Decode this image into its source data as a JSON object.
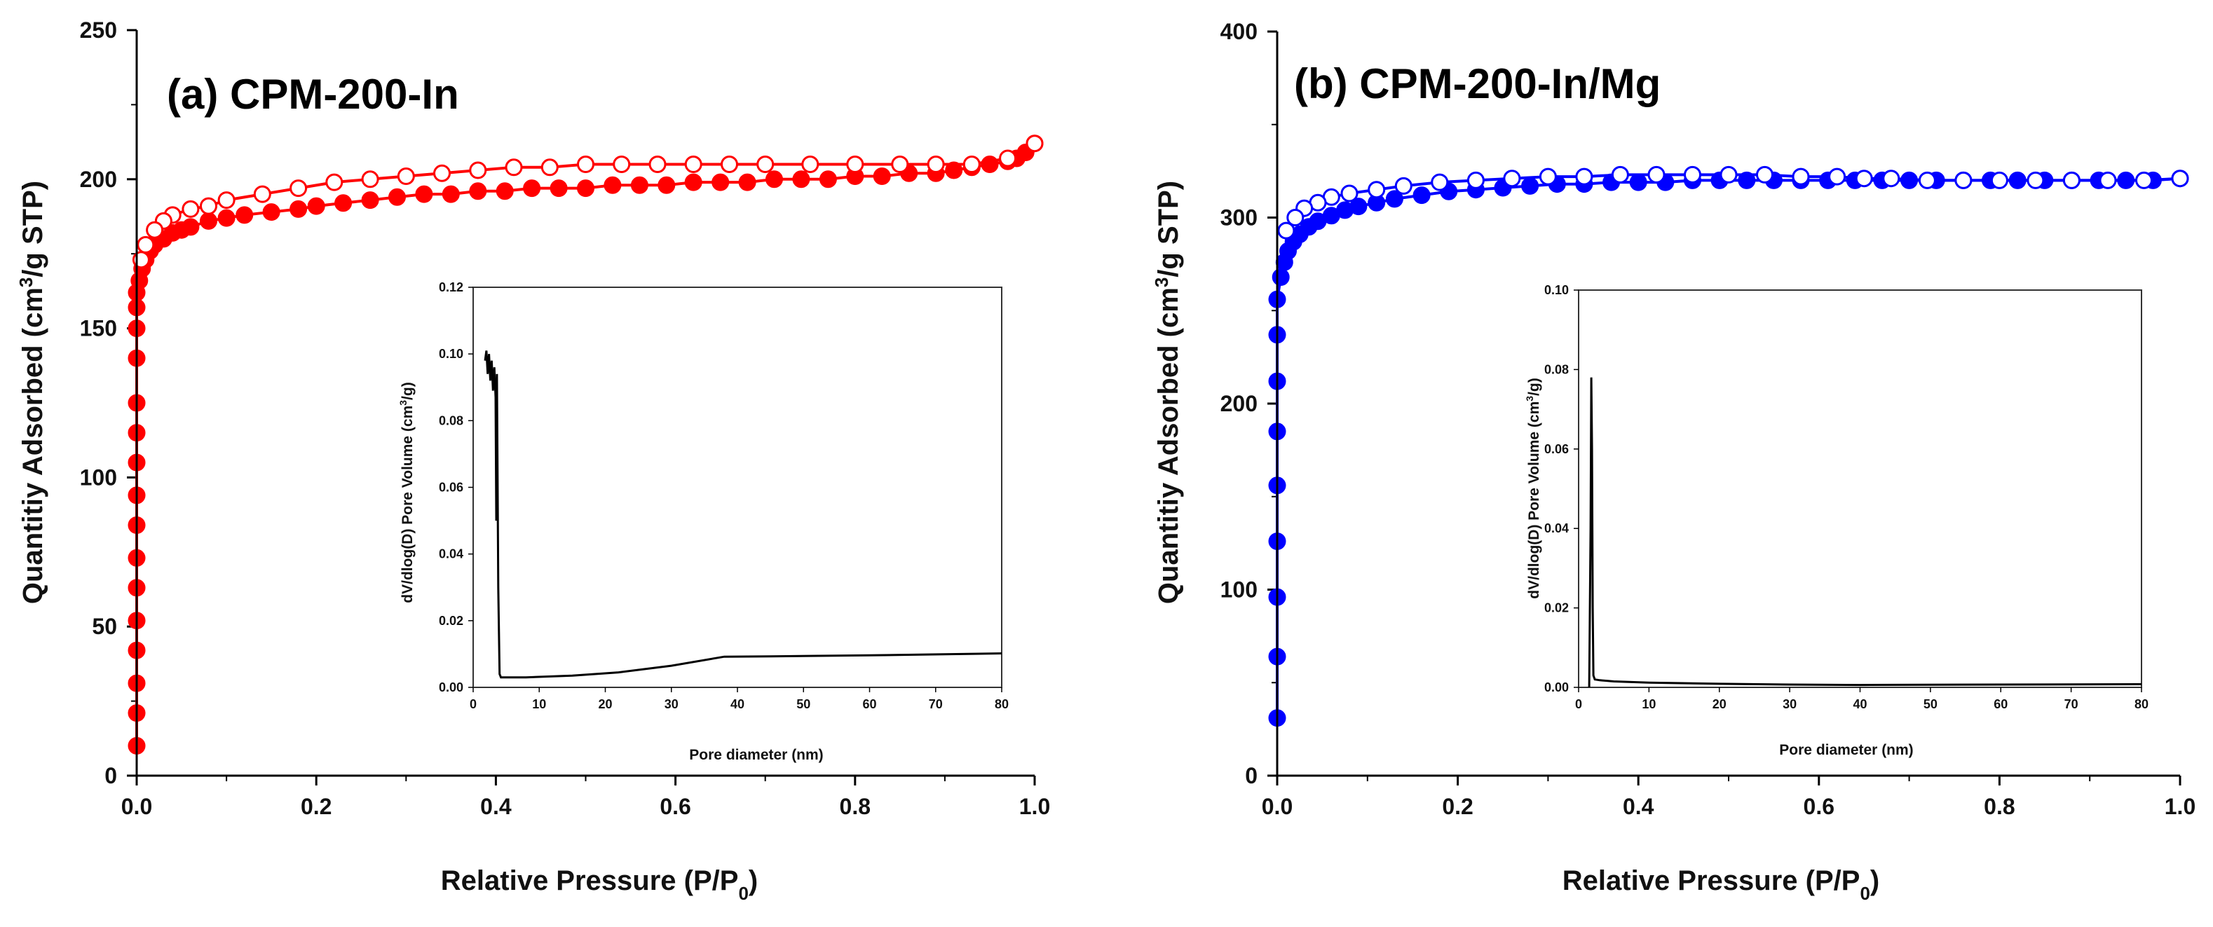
{
  "figure": {
    "background": "#ffffff",
    "axis_color": "#000000"
  },
  "chart_data": [
    {
      "type": "scatter",
      "title": "(a) CPM-200-In",
      "xlabel": "Relative Pressure (P/P0)",
      "xlabel_main": "Relative Pressure (P/P",
      "xlabel_sub": "0",
      "xlabel_tail": ")",
      "ylabel": "Quantitiy Adsorbed (cm3/g STP)",
      "ylabel_main": "Quantitiy Adsorbed (cm",
      "ylabel_sup": "3",
      "ylabel_tail": "/g STP)",
      "xlim": [
        0,
        1.0
      ],
      "ylim": [
        0,
        250
      ],
      "xticks": [
        0.0,
        0.2,
        0.4,
        0.6,
        0.8,
        1.0
      ],
      "xtick_labels": [
        "0.0",
        "0.2",
        "0.4",
        "0.6",
        "0.8",
        "1.0"
      ],
      "yticks": [
        0,
        50,
        100,
        150,
        200,
        250
      ],
      "ytick_labels": [
        "0",
        "50",
        "100",
        "150",
        "200",
        "250"
      ],
      "color": "#ff0000",
      "series": [
        {
          "name": "adsorption",
          "marker": "filled-circle",
          "x": [
            0.0,
            0.0,
            0.0,
            0.0,
            0.0,
            0.0,
            0.0,
            0.0,
            0.0,
            0.0,
            0.0,
            0.0,
            0.0,
            0.0,
            0.0,
            0.0,
            0.003,
            0.006,
            0.01,
            0.015,
            0.02,
            0.03,
            0.04,
            0.05,
            0.06,
            0.08,
            0.1,
            0.12,
            0.15,
            0.18,
            0.2,
            0.23,
            0.26,
            0.29,
            0.32,
            0.35,
            0.38,
            0.41,
            0.44,
            0.47,
            0.5,
            0.53,
            0.56,
            0.59,
            0.62,
            0.65,
            0.68,
            0.71,
            0.74,
            0.77,
            0.8,
            0.83,
            0.86,
            0.89,
            0.91,
            0.93,
            0.95,
            0.97,
            0.98,
            0.99,
            1.0
          ],
          "y": [
            10,
            21,
            31,
            42,
            52,
            63,
            73,
            84,
            94,
            105,
            115,
            125,
            140,
            150,
            157,
            162,
            166,
            170,
            173,
            176,
            178,
            180,
            182,
            183,
            184,
            186,
            187,
            188,
            189,
            190,
            191,
            192,
            193,
            194,
            195,
            195,
            196,
            196,
            197,
            197,
            197,
            198,
            198,
            198,
            199,
            199,
            199,
            200,
            200,
            200,
            201,
            201,
            202,
            202,
            203,
            204,
            205,
            206,
            207,
            209,
            212
          ]
        },
        {
          "name": "desorption",
          "marker": "open-circle",
          "x": [
            1.0,
            0.97,
            0.93,
            0.89,
            0.85,
            0.8,
            0.75,
            0.7,
            0.66,
            0.62,
            0.58,
            0.54,
            0.5,
            0.46,
            0.42,
            0.38,
            0.34,
            0.3,
            0.26,
            0.22,
            0.18,
            0.14,
            0.1,
            0.08,
            0.06,
            0.04,
            0.03,
            0.02,
            0.01,
            0.005
          ],
          "y": [
            212,
            207,
            205,
            205,
            205,
            205,
            205,
            205,
            205,
            205,
            205,
            205,
            205,
            204,
            204,
            203,
            202,
            201,
            200,
            199,
            197,
            195,
            193,
            191,
            190,
            188,
            186,
            183,
            178,
            173
          ]
        }
      ],
      "inset": {
        "type": "line",
        "xlabel": "Pore diameter (nm)",
        "ylabel": "dV/dlog(D) Pore Volume (cm3/g)",
        "ylabel_main": "dV/dlog(D) Pore Volume (cm",
        "ylabel_sup": "3",
        "ylabel_tail": "/g)",
        "xlim": [
          0,
          80
        ],
        "ylim": [
          0,
          0.12
        ],
        "xticks": [
          0,
          10,
          20,
          30,
          40,
          50,
          60,
          70,
          80
        ],
        "xtick_labels": [
          "0",
          "10",
          "20",
          "30",
          "40",
          "50",
          "60",
          "70",
          "80"
        ],
        "yticks": [
          0,
          0.02,
          0.04,
          0.06,
          0.08,
          0.1,
          0.12
        ],
        "ytick_labels": [
          "0.00",
          "0.02",
          "0.04",
          "0.06",
          "0.08",
          "0.10",
          "0.12"
        ],
        "x": [
          1.8,
          2.0,
          2.2,
          2.4,
          2.6,
          2.8,
          3.0,
          3.2,
          3.4,
          3.5,
          3.6,
          3.8,
          4.0,
          4.2,
          8,
          15,
          22,
          30,
          38,
          45,
          60,
          80
        ],
        "y": [
          0.098,
          0.101,
          0.094,
          0.1,
          0.092,
          0.098,
          0.089,
          0.096,
          0.087,
          0.05,
          0.094,
          0.03,
          0.004,
          0.003,
          0.003,
          0.0035,
          0.0045,
          0.0065,
          0.0092,
          0.0093,
          0.0096,
          0.0102
        ]
      }
    },
    {
      "type": "scatter",
      "title": "(b) CPM-200-In/Mg",
      "xlabel": "Relative Pressure (P/P0)",
      "xlabel_main": "Relative Pressure (P/P",
      "xlabel_sub": "0",
      "xlabel_tail": ")",
      "ylabel": "Quantitiy Adsorbed (cm3/g STP)",
      "ylabel_main": "Quantitiy Adsorbed (cm",
      "ylabel_sup": "3",
      "ylabel_tail": "/g STP)",
      "xlim": [
        0,
        1.0
      ],
      "ylim": [
        0,
        400
      ],
      "xticks": [
        0.0,
        0.2,
        0.4,
        0.6,
        0.8,
        1.0
      ],
      "xtick_labels": [
        "0.0",
        "0.2",
        "0.4",
        "0.6",
        "0.8",
        "1.0"
      ],
      "yticks": [
        0,
        100,
        200,
        300,
        400
      ],
      "ytick_labels": [
        "0",
        "100",
        "200",
        "300",
        "400"
      ],
      "color": "#0000ff",
      "series": [
        {
          "name": "adsorption",
          "marker": "filled-circle",
          "x": [
            0.0,
            0.0,
            0.0,
            0.0,
            0.0,
            0.0,
            0.0,
            0.0,
            0.0,
            0.004,
            0.008,
            0.012,
            0.018,
            0.025,
            0.035,
            0.045,
            0.06,
            0.075,
            0.09,
            0.11,
            0.13,
            0.16,
            0.19,
            0.22,
            0.25,
            0.28,
            0.31,
            0.34,
            0.37,
            0.4,
            0.43,
            0.46,
            0.49,
            0.52,
            0.55,
            0.58,
            0.61,
            0.64,
            0.67,
            0.7,
            0.73,
            0.76,
            0.79,
            0.82,
            0.85,
            0.88,
            0.91,
            0.94,
            0.97,
            1.0
          ],
          "y": [
            31,
            64,
            96,
            126,
            156,
            185,
            212,
            237,
            256,
            268,
            276,
            282,
            287,
            291,
            295,
            298,
            301,
            304,
            306,
            308,
            310,
            312,
            314,
            315,
            316,
            317,
            318,
            318,
            319,
            319,
            319,
            320,
            320,
            320,
            320,
            320,
            320,
            320,
            320,
            320,
            320,
            320,
            320,
            320,
            320,
            320,
            320,
            320,
            320,
            321
          ]
        },
        {
          "name": "desorption",
          "marker": "open-circle",
          "x": [
            1.0,
            0.96,
            0.92,
            0.88,
            0.84,
            0.8,
            0.76,
            0.72,
            0.68,
            0.65,
            0.62,
            0.58,
            0.54,
            0.5,
            0.46,
            0.42,
            0.38,
            0.34,
            0.3,
            0.26,
            0.22,
            0.18,
            0.14,
            0.11,
            0.08,
            0.06,
            0.045,
            0.03,
            0.02,
            0.01
          ],
          "y": [
            321,
            320,
            320,
            320,
            320,
            320,
            320,
            320,
            321,
            321,
            322,
            322,
            323,
            323,
            323,
            323,
            323,
            322,
            322,
            321,
            320,
            319,
            317,
            315,
            313,
            311,
            308,
            305,
            300,
            293
          ]
        }
      ],
      "inset": {
        "type": "line",
        "xlabel": "Pore diameter (nm)",
        "ylabel": "dV/dlog(D) Pore Volume (cm3/g)",
        "ylabel_main": "dV/dlog(D) Pore Volume (cm",
        "ylabel_sup": "3",
        "ylabel_tail": "/g)",
        "xlim": [
          0,
          80
        ],
        "ylim": [
          0,
          0.1
        ],
        "xticks": [
          0,
          10,
          20,
          30,
          40,
          50,
          60,
          70,
          80
        ],
        "xtick_labels": [
          "0",
          "10",
          "20",
          "30",
          "40",
          "50",
          "60",
          "70",
          "80"
        ],
        "yticks": [
          0,
          0.02,
          0.04,
          0.06,
          0.08,
          0.1
        ],
        "ytick_labels": [
          "0.00",
          "0.02",
          "0.04",
          "0.06",
          "0.08",
          "0.10"
        ],
        "x": [
          1.5,
          1.7,
          1.8,
          1.9,
          2.0,
          2.1,
          2.3,
          3,
          5,
          10,
          20,
          30,
          40,
          60,
          80
        ],
        "y": [
          0.0,
          0.04,
          0.078,
          0.06,
          0.02,
          0.003,
          0.002,
          0.0018,
          0.0015,
          0.0012,
          0.0009,
          0.0007,
          0.0006,
          0.0007,
          0.0008
        ]
      }
    }
  ]
}
